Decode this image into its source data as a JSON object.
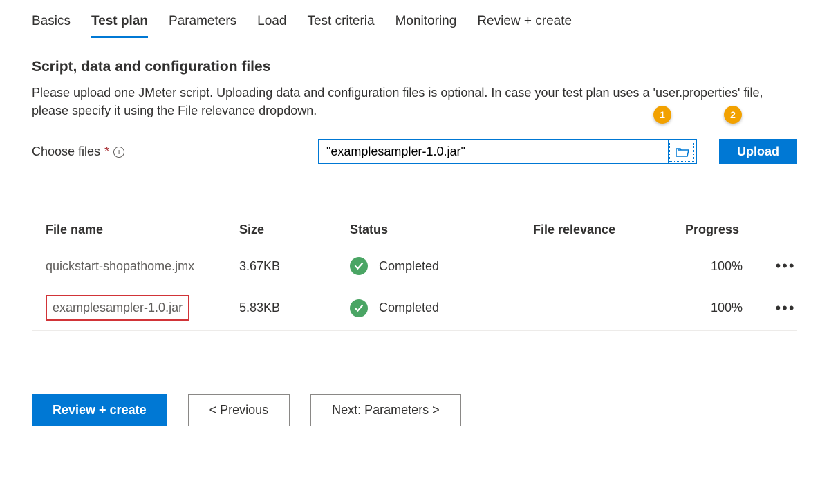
{
  "tabs": [
    {
      "label": "Basics",
      "active": false
    },
    {
      "label": "Test plan",
      "active": true
    },
    {
      "label": "Parameters",
      "active": false
    },
    {
      "label": "Load",
      "active": false
    },
    {
      "label": "Test criteria",
      "active": false
    },
    {
      "label": "Monitoring",
      "active": false
    },
    {
      "label": "Review + create",
      "active": false
    }
  ],
  "section": {
    "title": "Script, data and configuration files",
    "description": "Please upload one JMeter script. Uploading data and configuration files is optional. In case your test plan uses a 'user.properties' file, please specify it using the File relevance dropdown."
  },
  "choose": {
    "label": "Choose files",
    "input_value": "\"examplesampler-1.0.jar\"",
    "upload_label": "Upload"
  },
  "callouts": {
    "one": "1",
    "two": "2"
  },
  "table": {
    "headers": {
      "filename": "File name",
      "size": "Size",
      "status": "Status",
      "relevance": "File relevance",
      "progress": "Progress"
    },
    "rows": [
      {
        "filename": "quickstart-shopathome.jmx",
        "size": "3.67KB",
        "status": "Completed",
        "relevance": "",
        "progress": "100%",
        "highlighted": false
      },
      {
        "filename": "examplesampler-1.0.jar",
        "size": "5.83KB",
        "status": "Completed",
        "relevance": "",
        "progress": "100%",
        "highlighted": true
      }
    ]
  },
  "footer": {
    "review": "Review + create",
    "previous": "< Previous",
    "next": "Next: Parameters >"
  },
  "colors": {
    "primary": "#0078d4",
    "warning_badge": "#f2a100",
    "success": "#4aa564",
    "highlight_border": "#d13438"
  }
}
